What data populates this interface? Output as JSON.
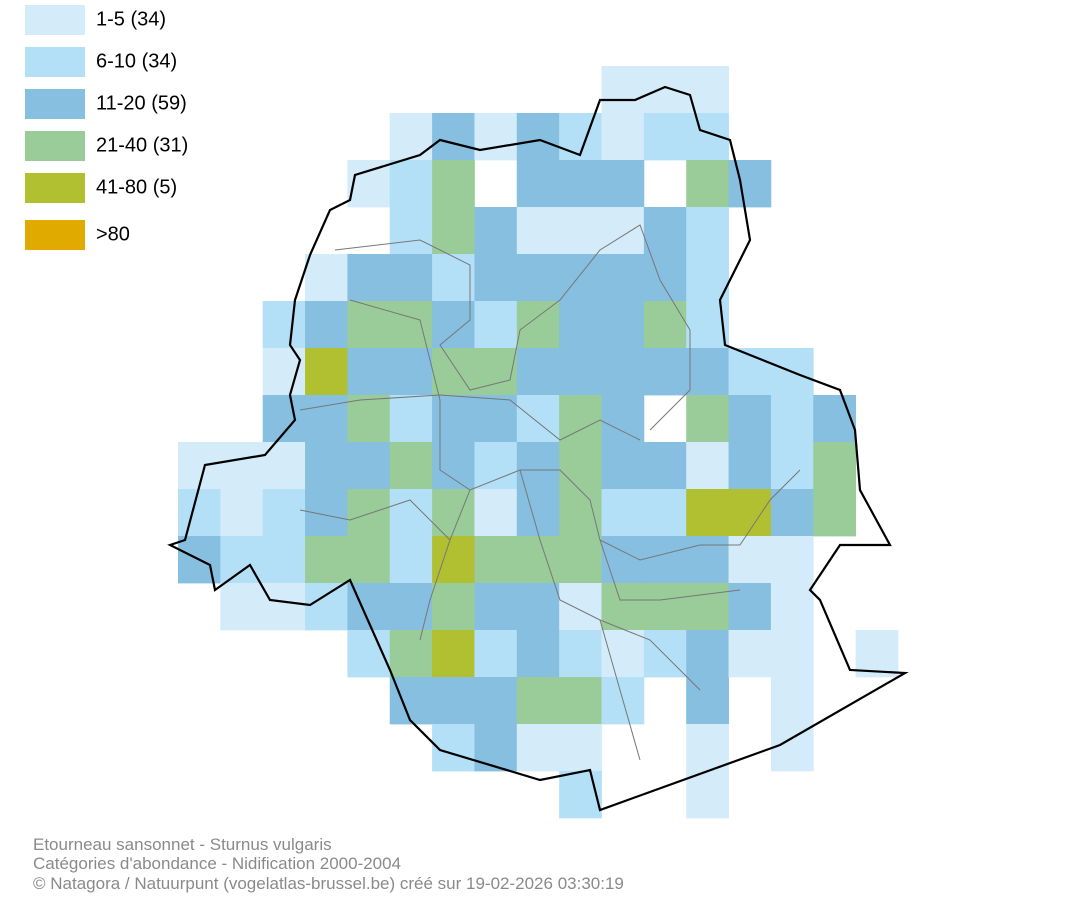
{
  "legend": [
    {
      "label": "1-5 (34)",
      "color": "#d4ebf9"
    },
    {
      "label": "6-10 (34)",
      "color": "#b3e0f7"
    },
    {
      "label": "11-20 (59)",
      "color": "#86bfdf"
    },
    {
      "label": "21-40 (31)",
      "color": "#99cc99"
    },
    {
      "label": "41-80 (5)",
      "color": "#b0c030"
    },
    {
      "label": ">80",
      "color": "#e0aa00"
    }
  ],
  "map": {
    "cells": [
      [
        0,
        0,
        0,
        0,
        0,
        0,
        0,
        0,
        0,
        0,
        1,
        1,
        1,
        0,
        0,
        0,
        0
      ],
      [
        0,
        0,
        0,
        0,
        0,
        1,
        3,
        1,
        3,
        2,
        1,
        2,
        2,
        0,
        0,
        0,
        0
      ],
      [
        0,
        0,
        0,
        0,
        1,
        2,
        4,
        0,
        3,
        3,
        3,
        0,
        4,
        3,
        0,
        0,
        0
      ],
      [
        0,
        0,
        0,
        0,
        0,
        2,
        4,
        3,
        1,
        1,
        1,
        3,
        2,
        0,
        0,
        0,
        0
      ],
      [
        0,
        0,
        0,
        1,
        3,
        3,
        2,
        3,
        3,
        3,
        3,
        3,
        2,
        0,
        0,
        0,
        0
      ],
      [
        0,
        0,
        2,
        3,
        4,
        4,
        3,
        2,
        4,
        3,
        3,
        4,
        2,
        0,
        0,
        0,
        0
      ],
      [
        0,
        0,
        1,
        5,
        3,
        3,
        4,
        4,
        3,
        3,
        3,
        3,
        3,
        2,
        2,
        0,
        0
      ],
      [
        0,
        0,
        3,
        3,
        4,
        2,
        3,
        3,
        2,
        4,
        3,
        0,
        4,
        3,
        2,
        3,
        0
      ],
      [
        1,
        1,
        1,
        3,
        3,
        4,
        3,
        2,
        3,
        4,
        3,
        3,
        1,
        3,
        2,
        4,
        0
      ],
      [
        2,
        1,
        2,
        3,
        4,
        2,
        4,
        1,
        3,
        4,
        2,
        2,
        5,
        5,
        3,
        4,
        0
      ],
      [
        3,
        2,
        2,
        4,
        4,
        2,
        5,
        4,
        4,
        4,
        3,
        3,
        3,
        1,
        1,
        0,
        0
      ],
      [
        0,
        1,
        1,
        2,
        3,
        3,
        4,
        3,
        3,
        1,
        4,
        4,
        4,
        3,
        1,
        0,
        0
      ],
      [
        0,
        0,
        0,
        0,
        2,
        4,
        5,
        2,
        3,
        2,
        1,
        2,
        3,
        1,
        1,
        0,
        1
      ],
      [
        0,
        0,
        0,
        0,
        0,
        3,
        3,
        3,
        4,
        4,
        2,
        0,
        3,
        0,
        1,
        0,
        0
      ],
      [
        0,
        0,
        0,
        0,
        0,
        0,
        2,
        3,
        1,
        1,
        0,
        0,
        1,
        0,
        1,
        0,
        0
      ],
      [
        0,
        0,
        0,
        0,
        0,
        0,
        0,
        0,
        0,
        2,
        0,
        0,
        1,
        0,
        0,
        0,
        0
      ]
    ]
  },
  "footer": [
    "Etourneau sansonnet - Sturnus vulgaris",
    "Catégories d'abondance - Nidification 2000-2004",
    "© Natagora / Natuurpunt (vogelatlas-brussel.be) créé sur 19-02-2026 03:30:19"
  ]
}
